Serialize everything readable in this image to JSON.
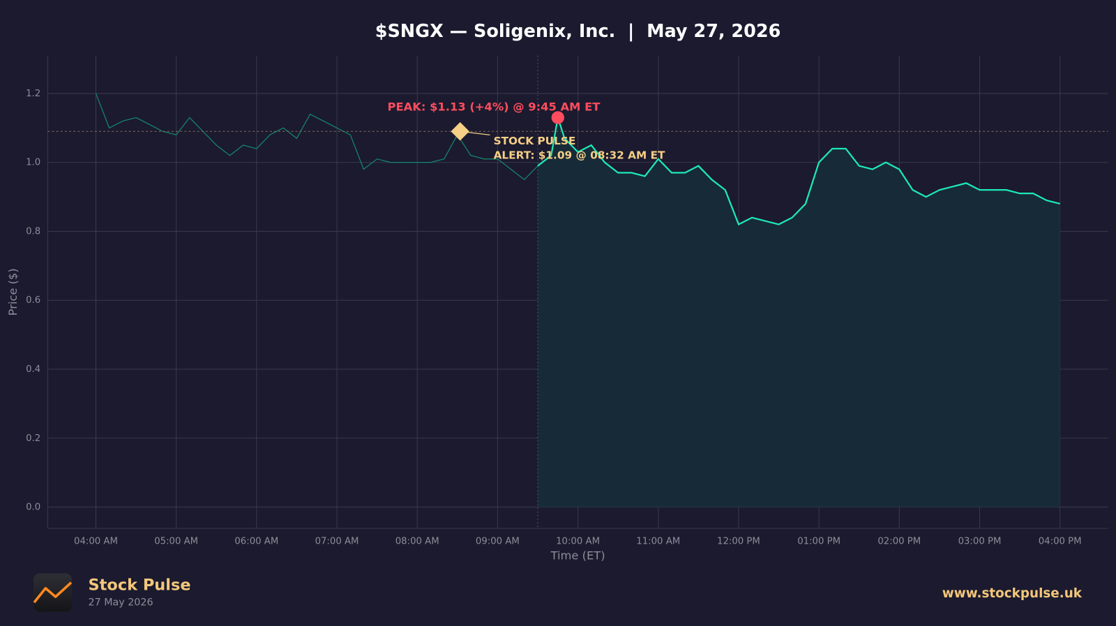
{
  "chart_data": {
    "type": "line",
    "title": "$SNGX — Soligenix, Inc.  |  May 27, 2026",
    "x_label": "Time (ET)",
    "y_label": "Price ($)",
    "x": [
      "04:00 AM",
      "04:10 AM",
      "04:20 AM",
      "04:30 AM",
      "04:40 AM",
      "04:50 AM",
      "05:00 AM",
      "05:10 AM",
      "05:20 AM",
      "05:30 AM",
      "05:40 AM",
      "05:50 AM",
      "06:00 AM",
      "06:10 AM",
      "06:20 AM",
      "06:30 AM",
      "06:40 AM",
      "06:50 AM",
      "07:00 AM",
      "07:10 AM",
      "07:20 AM",
      "07:30 AM",
      "07:40 AM",
      "07:50 AM",
      "08:00 AM",
      "08:10 AM",
      "08:20 AM",
      "08:30 AM",
      "08:40 AM",
      "08:50 AM",
      "09:00 AM",
      "09:10 AM",
      "09:20 AM",
      "09:30 AM",
      "09:40 AM",
      "09:45 AM",
      "09:50 AM",
      "10:00 AM",
      "10:10 AM",
      "10:20 AM",
      "10:30 AM",
      "10:40 AM",
      "10:50 AM",
      "11:00 AM",
      "11:10 AM",
      "11:20 AM",
      "11:30 AM",
      "11:40 AM",
      "11:50 AM",
      "12:00 PM",
      "12:10 PM",
      "12:20 PM",
      "12:30 PM",
      "12:40 PM",
      "12:50 PM",
      "01:00 PM",
      "01:10 PM",
      "01:20 PM",
      "01:30 PM",
      "01:40 PM",
      "01:50 PM",
      "02:00 PM",
      "02:10 PM",
      "02:20 PM",
      "02:30 PM",
      "02:40 PM",
      "02:50 PM",
      "03:00 PM",
      "03:10 PM",
      "03:20 PM",
      "03:30 PM",
      "03:40 PM",
      "03:50 PM",
      "04:00 PM"
    ],
    "values": [
      1.2,
      1.1,
      1.12,
      1.13,
      1.11,
      1.09,
      1.08,
      1.13,
      1.09,
      1.05,
      1.02,
      1.05,
      1.04,
      1.08,
      1.1,
      1.07,
      1.14,
      1.12,
      1.1,
      1.08,
      0.98,
      1.01,
      1.0,
      1.0,
      1.0,
      1.0,
      1.01,
      1.08,
      1.02,
      1.01,
      1.01,
      0.98,
      0.95,
      0.99,
      1.02,
      1.13,
      1.07,
      1.03,
      1.05,
      1.0,
      0.97,
      0.97,
      0.96,
      1.01,
      0.97,
      0.97,
      0.99,
      0.95,
      0.92,
      0.82,
      0.84,
      0.83,
      0.82,
      0.84,
      0.88,
      1.0,
      1.04,
      1.04,
      0.99,
      0.98,
      1.0,
      0.98,
      0.92,
      0.9,
      0.92,
      0.93,
      0.94,
      0.92,
      0.92,
      0.92,
      0.91,
      0.91,
      0.89,
      0.88
    ],
    "session_start": "09:30 AM",
    "color": "#1de9b6",
    "pre_market_color": "#17806b",
    "fill_color": "#172a38",
    "xlim": [
      "03:24 AM",
      "04:36 PM"
    ],
    "xticks": [
      "04:00 AM",
      "05:00 AM",
      "06:00 AM",
      "07:00 AM",
      "08:00 AM",
      "09:00 AM",
      "10:00 AM",
      "11:00 AM",
      "12:00 PM",
      "01:00 PM",
      "02:00 PM",
      "03:00 PM",
      "04:00 PM"
    ],
    "ylim": [
      -0.062,
      1.31
    ],
    "yticks": [
      {
        "value": 0,
        "label": "0.0"
      },
      0.2,
      0.4,
      0.6,
      0.8,
      {
        "value": 1,
        "label": "1.0"
      },
      1.2
    ],
    "grid": true,
    "annotations": [
      {
        "x": "09:45 AM",
        "y": 1.13,
        "text": "PEAK: $1.13 (+4%) @ 9:45 AM ET",
        "color": "#ff4d5e"
      },
      {
        "x": "08:32 AM",
        "y": 1.09,
        "text": [
          "STOCK PULSE",
          "ALERT: $1.09 @ 08:32 AM ET"
        ],
        "color": "#f5cf86"
      }
    ]
  },
  "footer": {
    "brand": "Stock Pulse",
    "date": "27 May 2026",
    "url": "www.stockpulse.uk"
  }
}
